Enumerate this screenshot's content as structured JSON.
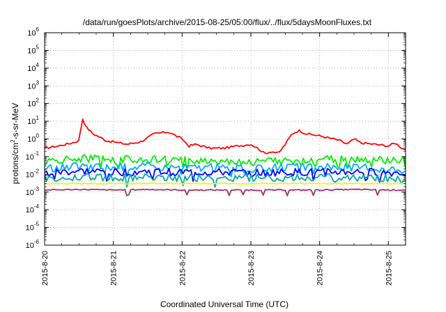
{
  "chart_data": {
    "type": "line",
    "title": "/data/run/goesPlots/archive/2015-08-25/05:00/flux/../flux/5daysMoonFluxes.txt",
    "xlabel": "Coordinated Universal Time (UTC)",
    "ylabel_parts": [
      "protons/cm",
      "2",
      "-s-sr-MeV"
    ],
    "yscale": "log",
    "ylim_exponents": [
      -6,
      6
    ],
    "ytick_base": "10",
    "yticks": [
      -6,
      -5,
      -4,
      -3,
      -2,
      -1,
      0,
      1,
      2,
      3,
      4,
      5,
      6
    ],
    "xlim_days": [
      0,
      5.25
    ],
    "xtick_labels": [
      "2015-8-20",
      "2015-8-21",
      "2015-8-22",
      "2015-8-23",
      "2015-8-24",
      "2015-8-25"
    ],
    "xtick_days": [
      0,
      1,
      2,
      3,
      4,
      5
    ],
    "grid": true,
    "series": [
      {
        "color": "#ff0000",
        "x": [
          0,
          0.2,
          0.4,
          0.5,
          0.55,
          0.6,
          0.7,
          0.9,
          1.2,
          1.4,
          1.6,
          1.8,
          2.0,
          2.1,
          2.2,
          2.4,
          2.6,
          2.8,
          3.0,
          3.1,
          3.2,
          3.3,
          3.4,
          3.5,
          3.6,
          3.7,
          3.8,
          4.0,
          4.2,
          4.3,
          4.4,
          4.5,
          4.6,
          4.8,
          5.0,
          5.1,
          5.2,
          5.25
        ],
        "y": [
          0.3,
          0.4,
          0.6,
          0.8,
          15,
          5,
          2,
          0.8,
          0.5,
          0.7,
          2.0,
          2.5,
          1.0,
          0.4,
          0.5,
          0.3,
          0.3,
          0.4,
          0.5,
          0.3,
          0.15,
          0.2,
          0.15,
          0.5,
          2.0,
          3.0,
          2.0,
          1.5,
          1.0,
          0.8,
          0.5,
          1.0,
          0.6,
          0.5,
          0.4,
          0.6,
          0.3,
          0.25
        ]
      },
      {
        "color": "#00ee00",
        "x": [
          0,
          0.5,
          1.0,
          1.5,
          2.0,
          2.5,
          3.0,
          3.5,
          4.0,
          4.5,
          5.0,
          5.25
        ],
        "y": [
          0.05,
          0.08,
          0.07,
          0.07,
          0.06,
          0.06,
          0.05,
          0.06,
          0.07,
          0.07,
          0.06,
          0.06
        ]
      },
      {
        "color": "#00aaff",
        "x": [
          0,
          0.5,
          1.0,
          1.5,
          2.0,
          2.5,
          3.0,
          3.5,
          4.0,
          4.5,
          5.0,
          5.25
        ],
        "y": [
          0.02,
          0.03,
          0.025,
          0.03,
          0.025,
          0.025,
          0.02,
          0.025,
          0.025,
          0.025,
          0.02,
          0.02
        ]
      },
      {
        "color": "#0000ff",
        "x": [
          0,
          0.5,
          1.0,
          1.5,
          2.0,
          2.5,
          3.0,
          3.5,
          4.0,
          4.5,
          5.0,
          5.25
        ],
        "y": [
          0.012,
          0.015,
          0.013,
          0.014,
          0.013,
          0.013,
          0.012,
          0.013,
          0.013,
          0.014,
          0.012,
          0.012
        ]
      },
      {
        "color": "#00aaaa",
        "x": [
          0,
          0.5,
          1.0,
          1.5,
          2.0,
          2.5,
          3.0,
          3.5,
          4.0,
          4.5,
          5.0,
          5.25
        ],
        "y": [
          0.006,
          0.007,
          0.0065,
          0.007,
          0.0065,
          0.0065,
          0.006,
          0.0065,
          0.0065,
          0.007,
          0.006,
          0.006
        ]
      },
      {
        "color": "#ffee00",
        "x": [
          0,
          0.5,
          1.0,
          1.5,
          2.0,
          2.5,
          3.0,
          3.5,
          4.0,
          4.5,
          5.0,
          5.25
        ],
        "y": [
          0.003,
          0.003,
          0.003,
          0.003,
          0.003,
          0.003,
          0.003,
          0.003,
          0.003,
          0.003,
          0.003,
          0.003
        ]
      },
      {
        "color": "#993366",
        "x": [
          0,
          0.5,
          1.0,
          1.5,
          2.0,
          2.5,
          3.0,
          3.5,
          4.0,
          4.5,
          5.0,
          5.25
        ],
        "y": [
          0.0013,
          0.0014,
          0.0013,
          0.0014,
          0.0013,
          0.0013,
          0.0013,
          0.0013,
          0.0013,
          0.0014,
          0.0013,
          0.0013
        ]
      }
    ]
  }
}
